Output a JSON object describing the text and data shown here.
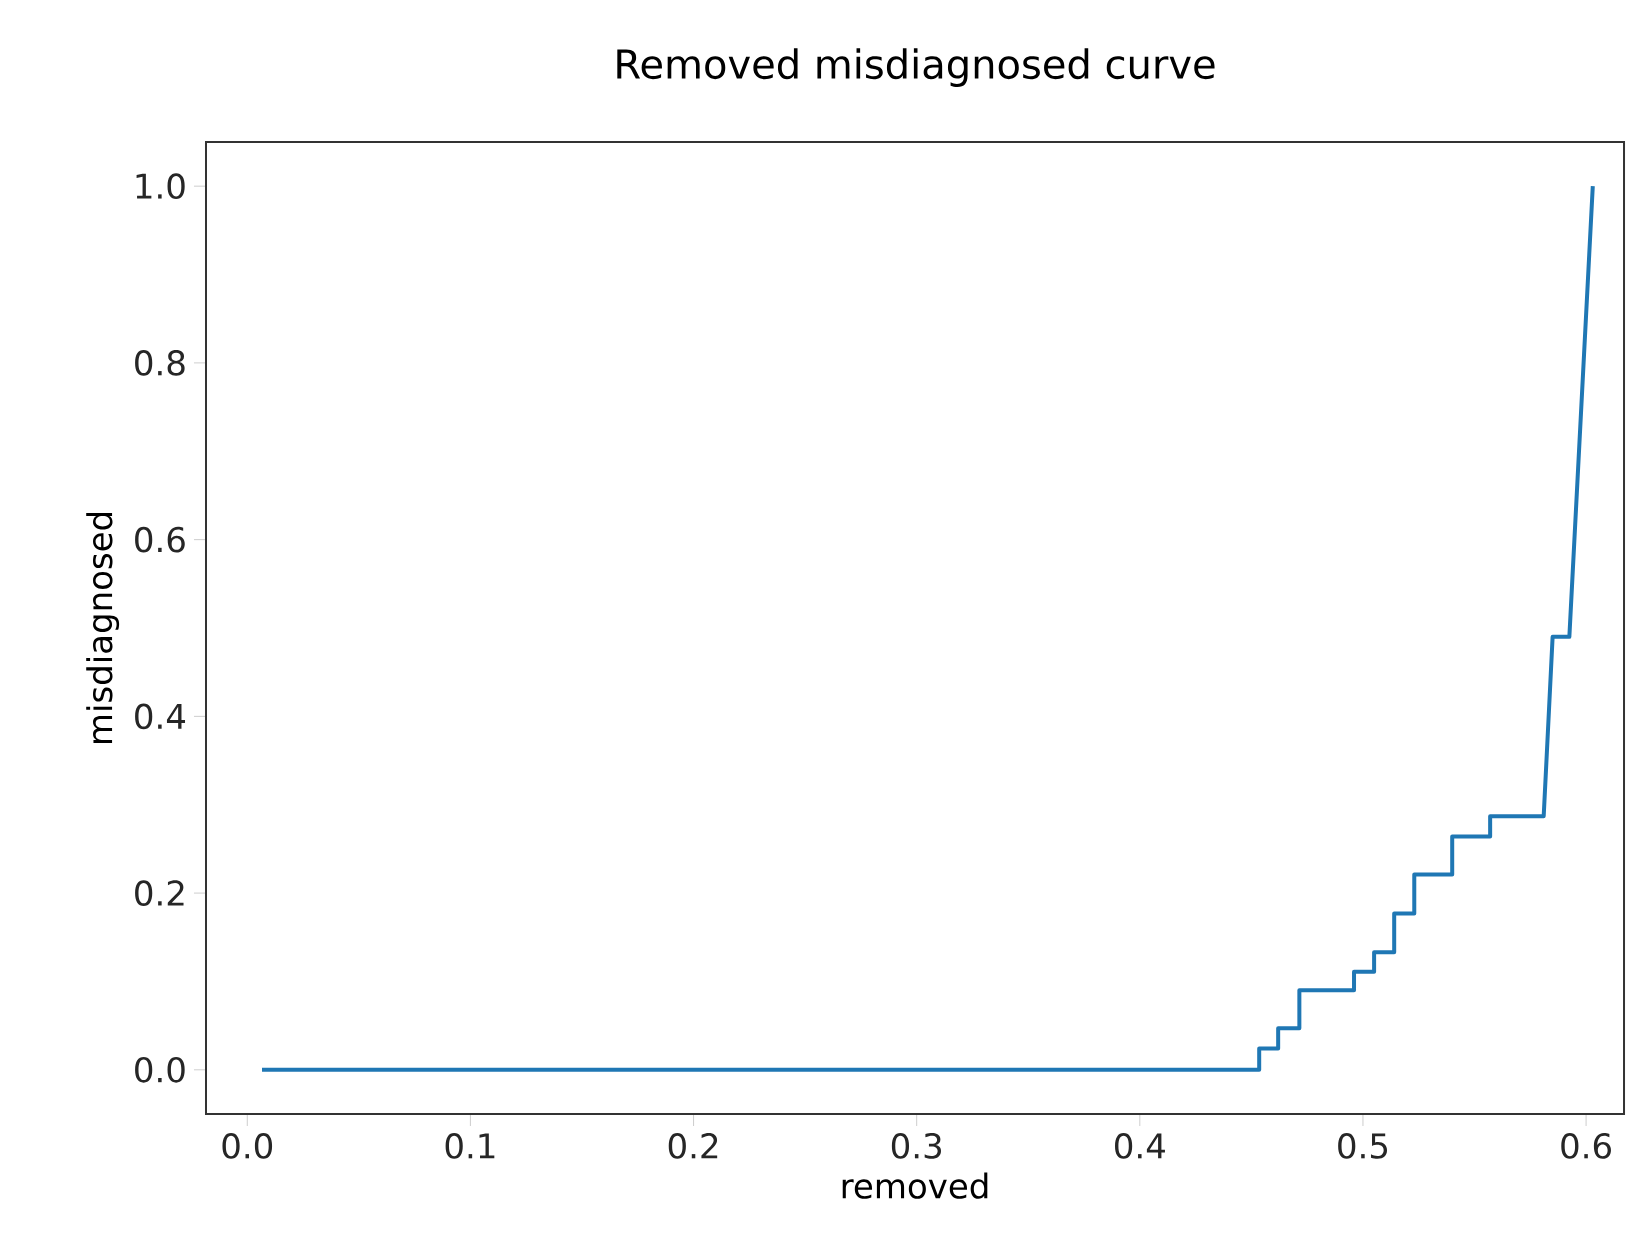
{
  "chart_data": {
    "type": "line",
    "title": "Removed misdiagnosed curve",
    "xlabel": "removed",
    "ylabel": "misdiagnosed",
    "xlim": [
      -0.0185,
      0.617
    ],
    "ylim": [
      -0.05,
      1.05
    ],
    "xticks": [
      {
        "value": 0,
        "label": "0.0"
      },
      0.1,
      0.2,
      0.3,
      0.4,
      0.5,
      0.6
    ],
    "yticks": [
      {
        "value": 0,
        "label": "0.0"
      },
      0.2,
      0.4,
      0.6,
      0.8,
      {
        "value": 1,
        "label": "1.0"
      }
    ],
    "grid": false,
    "series": [
      {
        "color": "#1f77b4",
        "x": [
          0.0066,
          0.4535,
          0.4535,
          0.462,
          0.462,
          0.4715,
          0.4715,
          0.496,
          0.496,
          0.505,
          0.505,
          0.514,
          0.514,
          0.523,
          0.523,
          0.54,
          0.54,
          0.557,
          0.557,
          0.581,
          0.585,
          0.5925,
          0.603
        ],
        "values": [
          0,
          0,
          0.024,
          0.024,
          0.047,
          0.047,
          0.09,
          0.09,
          0.111,
          0.111,
          0.133,
          0.133,
          0.177,
          0.177,
          0.221,
          0.221,
          0.264,
          0.264,
          0.287,
          0.287,
          0.49,
          0.49,
          1.0
        ]
      }
    ]
  }
}
